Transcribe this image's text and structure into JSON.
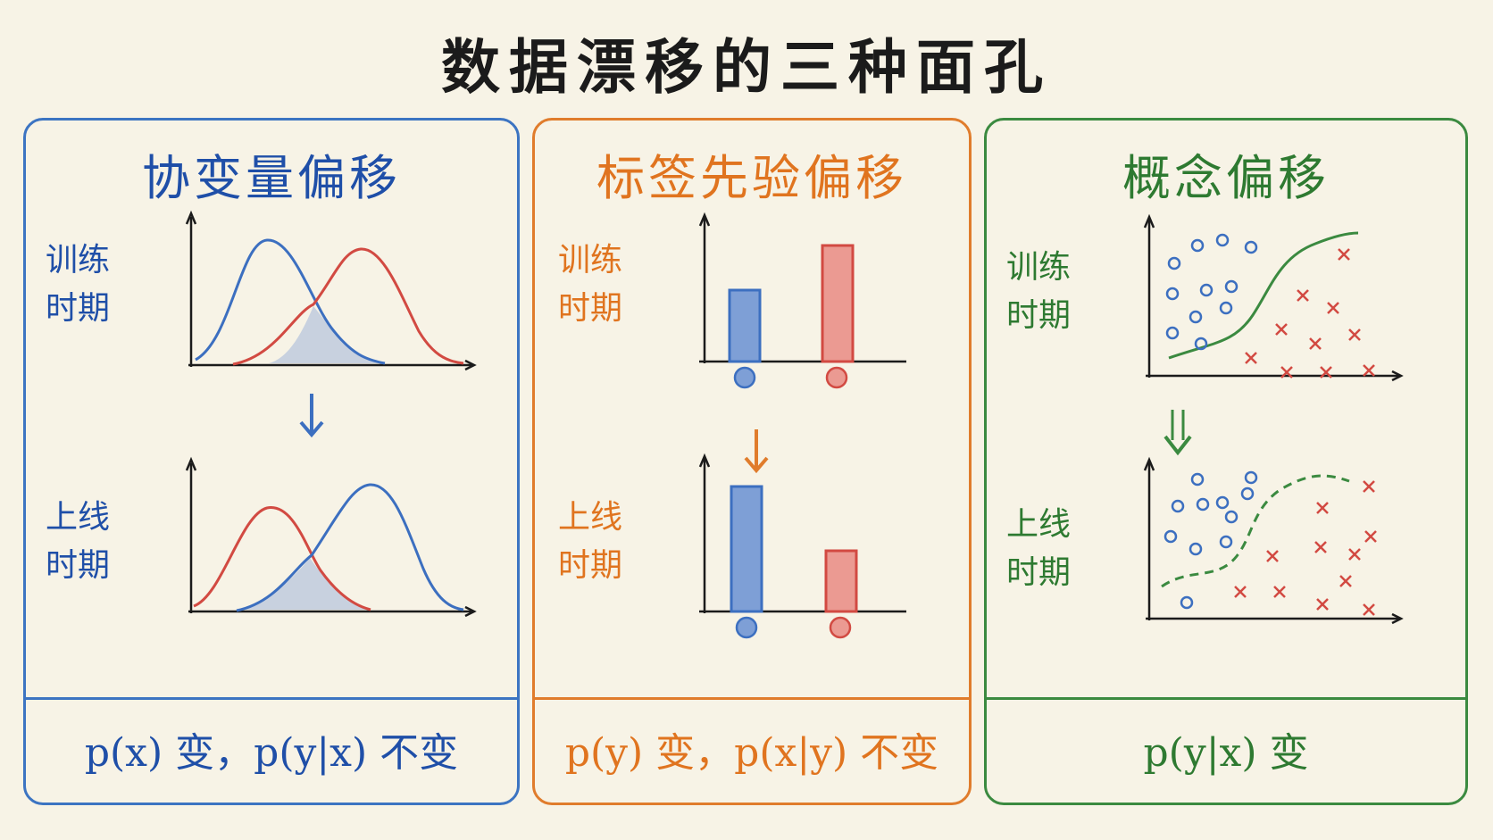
{
  "title": "数据漂移的三种面孔",
  "colors": {
    "blue": "#3c6fc0",
    "red": "#d24a42",
    "orange": "#e07c2c",
    "green": "#3b8a40",
    "paper": "#f7f3e6"
  },
  "panels": [
    {
      "title": "协变量偏移",
      "label_train": [
        "训练",
        "时期"
      ],
      "label_online": [
        "上线",
        "时期"
      ],
      "formula": {
        "a": "p(x)",
        "b": " 变，",
        "c": "p(y|x)",
        "d": " 不变"
      }
    },
    {
      "title": "标签先验偏移",
      "label_train": [
        "训练",
        "时期"
      ],
      "label_online": [
        "上线",
        "时期"
      ],
      "formula": {
        "a": "p(y)",
        "b": " 变，",
        "c": "p(x|y)",
        "d": " 不变"
      }
    },
    {
      "title": "概念偏移",
      "label_train": [
        "训练",
        "时期"
      ],
      "label_online": [
        "上线",
        "时期"
      ],
      "formula": {
        "a": "p(y|x)",
        "b": " 变",
        "c": "",
        "d": ""
      }
    }
  ],
  "arrow_icon": "down-arrow-icon"
}
